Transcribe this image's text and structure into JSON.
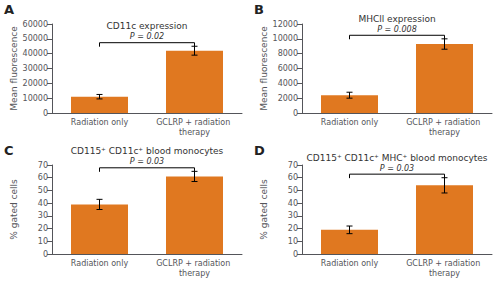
{
  "chart_data": [
    {
      "type": "bar",
      "label": "A",
      "title": "CD11c expression",
      "ylabel": "Mean fluorescence",
      "categories": [
        "Radiation only",
        "GCLRP + radiation therapy"
      ],
      "values": [
        11000,
        42000
      ],
      "errors": [
        1500,
        3000
      ],
      "color": "#E07820",
      "ylim": [
        0,
        60000
      ],
      "yticks": [
        0,
        10000,
        20000,
        30000,
        40000,
        50000,
        60000
      ],
      "annotation": "P = 0.02",
      "grid": false
    },
    {
      "type": "bar",
      "label": "B",
      "title": "MHCll expression",
      "ylabel": "Mean fluorescence",
      "categories": [
        "Radiation only",
        "GCLRP + radiation therapy"
      ],
      "values": [
        2400,
        9300
      ],
      "errors": [
        400,
        700
      ],
      "color": "#E07820",
      "ylim": [
        0,
        12000
      ],
      "yticks": [
        0,
        2000,
        4000,
        6000,
        8000,
        10000,
        12000
      ],
      "annotation": "P = 0.008",
      "grid": false
    },
    {
      "type": "bar",
      "label": "C",
      "title": "CD115⁺ CD11c⁺ blood monocytes",
      "ylabel": "% gated cells",
      "categories": [
        "Radiation only",
        "GCLRP + radiation therapy"
      ],
      "values": [
        39,
        61
      ],
      "errors": [
        4,
        4
      ],
      "color": "#E07820",
      "ylim": [
        0,
        70
      ],
      "yticks": [
        0,
        10,
        20,
        30,
        40,
        50,
        60,
        70
      ],
      "annotation": "P = 0.03",
      "grid": false
    },
    {
      "type": "bar",
      "label": "D",
      "title": "CD115⁺ CD11c⁺ MHC⁺ blood monocytes",
      "ylabel": "% gated cells",
      "categories": [
        "Radiation only",
        "GCLRP + radiation therapy"
      ],
      "values": [
        19,
        54
      ],
      "errors": [
        3,
        6
      ],
      "color": "#E07820",
      "ylim": [
        0,
        70
      ],
      "yticks": [
        0,
        10,
        20,
        30,
        40,
        50,
        60,
        70
      ],
      "annotation": "P = 0.03",
      "grid": false
    }
  ]
}
